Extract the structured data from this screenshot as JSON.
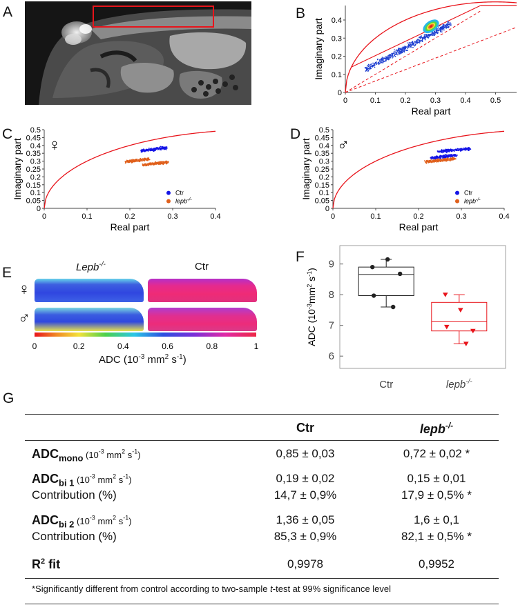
{
  "panels": {
    "A": "A",
    "B": "B",
    "C": "C",
    "D": "D",
    "E": "E",
    "F": "F",
    "G": "G"
  },
  "phasor_labels": {
    "xlabel": "Real part",
    "ylabel": "Imaginary part",
    "legend_ctr": "Ctr",
    "legend_lepb": "lepb",
    "legend_lepb_sup": "-/-",
    "female_symbol": "♀",
    "male_symbol": "♂"
  },
  "chart_data": [
    {
      "panel": "B",
      "type": "scatter",
      "xlabel": "Real part",
      "ylabel": "Imaginary part",
      "xlim": [
        0,
        0.57
      ],
      "ylim": [
        0,
        0.48
      ],
      "x_ticks": [
        "0",
        "0.1",
        "0.2",
        "0.3",
        "0.4",
        "0.5"
      ],
      "y_ticks": [
        "0",
        "0.1",
        "0.2",
        "0.3",
        "0.4"
      ],
      "cloud": {
        "x_from": 0.07,
        "y_from": 0.13,
        "x_to": 0.35,
        "y_to": 0.38,
        "peak_x": 0.285,
        "peak_y": 0.365
      },
      "series": [
        {
          "values": [
            [
              0.08,
              0.14
            ],
            [
              0.15,
              0.22
            ],
            [
              0.22,
              0.29
            ],
            [
              0.28,
              0.36
            ],
            [
              0.33,
              0.37
            ]
          ]
        }
      ]
    },
    {
      "panel": "C",
      "type": "scatter",
      "xlabel": "Real part",
      "ylabel": "Imaginary part",
      "xlim": [
        0,
        0.4
      ],
      "ylim": [
        0,
        0.5
      ],
      "x_ticks": [
        "0",
        "0.1",
        "0.2",
        "0.3",
        "0.4"
      ],
      "y_ticks": [
        "0",
        "0.05",
        "0.1",
        "0.15",
        "0.2",
        "0.25",
        "0.3",
        "0.35",
        "0.4",
        "0.45",
        "0.5"
      ],
      "series": [
        {
          "name": "Ctr",
          "color": "#1515e6",
          "clusters": [
            {
              "x_from": 0.225,
              "x_to": 0.285,
              "y_center": 0.375
            }
          ]
        },
        {
          "name": "lepb-/-",
          "color": "#e0601c",
          "clusters": [
            {
              "x_from": 0.19,
              "x_to": 0.245,
              "y_center": 0.305
            },
            {
              "x_from": 0.23,
              "x_to": 0.29,
              "y_center": 0.285
            }
          ]
        }
      ]
    },
    {
      "panel": "D",
      "type": "scatter",
      "xlabel": "Real part",
      "ylabel": "Imaginary part",
      "xlim": [
        0,
        0.4
      ],
      "ylim": [
        0,
        0.5
      ],
      "x_ticks": [
        "0",
        "0.1",
        "0.2",
        "0.3",
        "0.4"
      ],
      "y_ticks": [
        "0",
        "0.05",
        "0.1",
        "0.15",
        "0.2",
        "0.25",
        "0.3",
        "0.35",
        "0.4",
        "0.45",
        "0.5"
      ],
      "series": [
        {
          "name": "Ctr",
          "color": "#1515e6",
          "clusters": [
            {
              "x_from": 0.245,
              "x_to": 0.32,
              "y_center": 0.37
            },
            {
              "x_from": 0.23,
              "x_to": 0.29,
              "y_center": 0.33
            }
          ]
        },
        {
          "name": "lepb-/-",
          "color": "#e0601c",
          "clusters": [
            {
              "x_from": 0.215,
              "x_to": 0.285,
              "y_center": 0.305
            }
          ]
        }
      ]
    },
    {
      "panel": "F",
      "type": "box",
      "ylabel": "ADC (10-3mm2 s-1)",
      "ylim": [
        5.6,
        9.6
      ],
      "y_ticks": [
        "6",
        "7",
        "8",
        "9"
      ],
      "categories": [
        "Ctr",
        "lepb-/-"
      ],
      "series": [
        {
          "name": "Ctr",
          "color": "#222222",
          "q1": 7.97,
          "median": 8.66,
          "q3": 8.9,
          "whisker_low": 7.6,
          "whisker_high": 9.15,
          "points": [
            8.9,
            9.15,
            8.68,
            7.97,
            7.6
          ]
        },
        {
          "name": "lepb-/-",
          "color": "#e8141b",
          "q1": 6.82,
          "median": 7.12,
          "q3": 7.75,
          "whisker_low": 6.4,
          "whisker_high": 8.0,
          "points": [
            8.0,
            7.5,
            6.82,
            6.95,
            6.4
          ]
        }
      ]
    },
    {
      "panel": "E",
      "type": "heatmap",
      "colorbar_ticks": [
        "0",
        "0.2",
        "0.4",
        "0.6",
        "0.8",
        "1"
      ],
      "colorbar_label": "ADC (10-3 mm2 s-1)",
      "columns": [
        "Lepb-/-",
        "Ctr"
      ],
      "rows": [
        "♀",
        "♂"
      ],
      "approx_levels": [
        [
          0.55,
          0.9
        ],
        [
          0.6,
          0.92
        ]
      ]
    }
  ],
  "panelE": {
    "col_lepb": "Lepb",
    "col_lepb_sup": "-/-",
    "col_ctr": "Ctr",
    "cbar_label_a": "ADC (10",
    "cbar_label_sup1": "-3",
    "cbar_label_b": " mm",
    "cbar_label_sup2": "2",
    "cbar_label_c": " s",
    "cbar_label_sup3": "-1",
    "cbar_label_d": ")"
  },
  "panelF": {
    "ylabel_a": "ADC (10",
    "ylabel_sup1": "-3",
    "ylabel_b": "mm",
    "ylabel_sup2": "2",
    "ylabel_c": " s",
    "ylabel_sup3": "-1",
    "ylabel_d": ")",
    "cat_ctr": "Ctr",
    "cat_lepb": "lepb",
    "cat_lepb_sup": "-/-"
  },
  "table": {
    "header_ctr": "Ctr",
    "header_lepb": "lepb",
    "header_lepb_sup": "-/-",
    "rows": [
      {
        "label": "ADC",
        "sub": "mono",
        "unit_a": " (10",
        "unit_sup1": "-3",
        "unit_b": " mm",
        "unit_sup2": "2",
        "unit_c": " s",
        "unit_sup3": "-1",
        "unit_d": ")",
        "ctr": "0,85 ± 0,03",
        "lepb": "0,72 ± 0,02 *"
      },
      {
        "label": "ADC",
        "sub": "bi 1",
        "unit_a": " (10",
        "unit_sup1": "-3",
        "unit_b": " mm",
        "unit_sup2": "2",
        "unit_c": " s",
        "unit_sup3": "-1",
        "unit_d": ")",
        "ctr": "0,19 ± 0,02",
        "lepb": "0,15 ± 0,01"
      },
      {
        "label": "Contribution (%)",
        "ctr": "14,7 ± 0,9%",
        "lepb": "17,9 ± 0,5% *"
      },
      {
        "label": "ADC",
        "sub": "bi 2",
        "unit_a": " (10",
        "unit_sup1": "-3",
        "unit_b": " mm",
        "unit_sup2": "2",
        "unit_c": " s",
        "unit_sup3": "-1",
        "unit_d": ")",
        "ctr": "1,36 ± 0,05",
        "lepb": "1,6 ± 0,1"
      },
      {
        "label": "Contribution (%)",
        "ctr": "85,3 ± 0,9%",
        "lepb": "82,1 ± 0,5% *"
      },
      {
        "label": "R",
        "label_sup": "2",
        "label_tail": " fit",
        "ctr": "0,9978",
        "lepb": "0,9952"
      }
    ],
    "footnote_a": "*Significantly different from control according to two-sample ",
    "footnote_t": "t",
    "footnote_b": "-test at 99% significance level"
  },
  "colors": {
    "ctr_blue": "#1515e6",
    "lepb_orange": "#e0601c",
    "curve_red": "#e8141b",
    "box_red": "#e8141b"
  }
}
